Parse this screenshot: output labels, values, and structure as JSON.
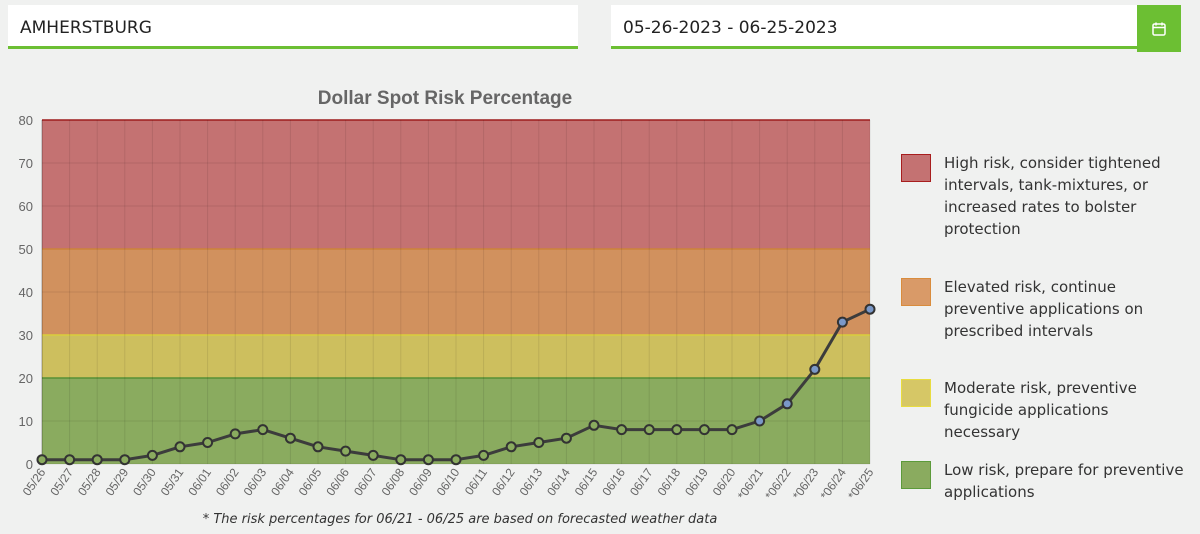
{
  "location": {
    "value": "AMHERSTBURG"
  },
  "daterange": {
    "value": "05-26-2023 - 06-25-2023"
  },
  "calendar_button": {
    "icon": "calendar-icon"
  },
  "chart_data": {
    "type": "line",
    "title": "Dollar Spot Risk Percentage",
    "categories": [
      "05/26",
      "05/27",
      "05/28",
      "05/29",
      "05/30",
      "05/31",
      "06/01",
      "06/02",
      "06/03",
      "06/04",
      "06/05",
      "06/06",
      "06/07",
      "06/08",
      "06/09",
      "06/10",
      "06/11",
      "06/12",
      "06/13",
      "06/14",
      "06/15",
      "06/16",
      "06/17",
      "06/18",
      "06/19",
      "06/20",
      "*06/21",
      "*06/22",
      "*06/23",
      "*06/24",
      "*06/25"
    ],
    "values": [
      1,
      1,
      1,
      1,
      2,
      4,
      5,
      7,
      8,
      6,
      4,
      3,
      2,
      1,
      1,
      1,
      2,
      4,
      5,
      6,
      9,
      8,
      8,
      8,
      8,
      8,
      10,
      14,
      22,
      33,
      36
    ],
    "forecast_start_index": 26,
    "ylim": [
      0,
      80
    ],
    "yticks": [
      0,
      10,
      20,
      30,
      40,
      50,
      60,
      70,
      80
    ],
    "bands": [
      {
        "from": 0,
        "to": 20,
        "fill": "#8aab5f",
        "line": "#5c9a3a"
      },
      {
        "from": 20,
        "to": 30,
        "fill": "#cdbf5e",
        "line": "#e8dc3f"
      },
      {
        "from": 30,
        "to": 50,
        "fill": "#d1915e",
        "line": "#d98c3d"
      },
      {
        "from": 50,
        "to": 80,
        "fill": "#c47272",
        "line": "#a81e1e"
      }
    ],
    "line_color": "#3c3c3c",
    "point_fill_observed": "#8aab5f",
    "point_fill_forecast": "#7a98c8"
  },
  "legend": [
    {
      "text": "High risk, consider tightened intervals, tank-mixtures, or increased rates to bolster protection",
      "fill": "#c47272",
      "border": "#a81e1e"
    },
    {
      "text": "Elevated risk, continue preventive applications on prescribed intervals",
      "fill": "#d99a68",
      "border": "#d98c3d"
    },
    {
      "text": "Moderate risk, preventive fungicide applications necessary",
      "fill": "#d6c766",
      "border": "#e8dc3f"
    },
    {
      "text": "Low risk, prepare for preventive applications",
      "fill": "#8aab5f",
      "border": "#5c9a3a"
    }
  ],
  "footnote": "* The risk percentages for 06/21 - 06/25 are based on forecasted weather data"
}
